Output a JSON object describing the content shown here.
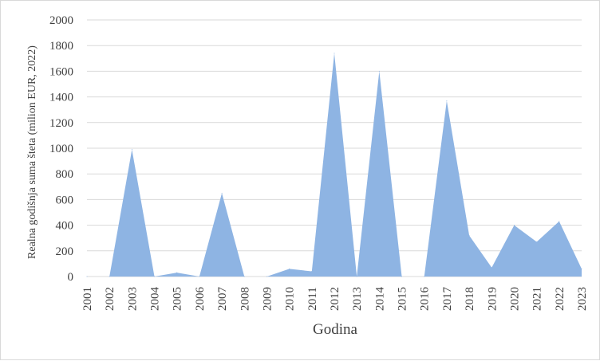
{
  "chart_data": {
    "type": "area",
    "x": [
      "2001",
      "2002",
      "2003",
      "2004",
      "2005",
      "2006",
      "2007",
      "2008",
      "2009",
      "2010",
      "2011",
      "2012",
      "2013",
      "2014",
      "2015",
      "2016",
      "2017",
      "2018",
      "2019",
      "2020",
      "2021",
      "2022",
      "2023"
    ],
    "values": [
      0,
      0,
      990,
      0,
      30,
      0,
      650,
      0,
      0,
      60,
      40,
      1740,
      0,
      1600,
      0,
      0,
      1370,
      320,
      70,
      400,
      270,
      430,
      60
    ],
    "xlabel": "Godina",
    "ylabel": "Realna godišnja suma šteta (milion EUR, 2022)",
    "ylim": [
      0,
      2000
    ],
    "yticks": [
      "0",
      "200",
      "400",
      "600",
      "800",
      "1000",
      "1200",
      "1400",
      "1600",
      "1800",
      "2000"
    ],
    "grid": true,
    "legend": "none",
    "fill_color": "#8EB4E3",
    "grid_color": "#d9d9d9"
  }
}
